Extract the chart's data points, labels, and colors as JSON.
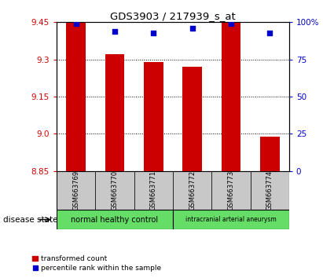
{
  "title": "GDS3903 / 217939_s_at",
  "samples": [
    "GSM663769",
    "GSM663770",
    "GSM663771",
    "GSM663772",
    "GSM663773",
    "GSM663774"
  ],
  "transformed_counts": [
    9.45,
    9.32,
    9.29,
    9.27,
    9.45,
    8.99
  ],
  "percentile_ranks": [
    99,
    94,
    93,
    96,
    99,
    93
  ],
  "y_min": 8.85,
  "y_max": 9.45,
  "y_ticks_left": [
    8.85,
    9.0,
    9.15,
    9.3,
    9.45
  ],
  "y_ticks_right": [
    0,
    25,
    50,
    75,
    100
  ],
  "bar_color": "#cc0000",
  "dot_color": "#0000cc",
  "group1_label": "normal healthy control",
  "group2_label": "intracranial arterial aneurysm",
  "group_color": "#66dd66",
  "disease_state_label": "disease state",
  "legend_bar_label": "transformed count",
  "legend_dot_label": "percentile rank within the sample",
  "tick_area_bg": "#c8c8c8"
}
